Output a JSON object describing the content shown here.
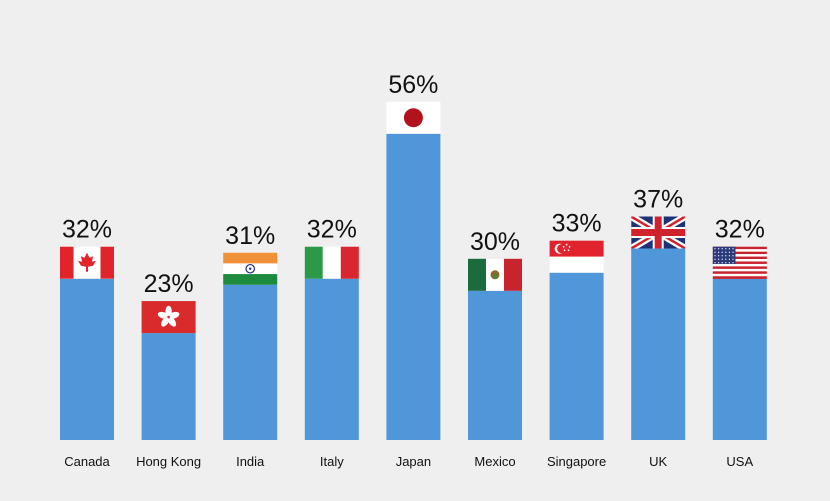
{
  "chart_data": {
    "type": "bar",
    "title": "",
    "xlabel": "",
    "ylabel": "",
    "categories": [
      "Canada",
      "Hong Kong",
      "India",
      "Italy",
      "Japan",
      "Mexico",
      "Singapore",
      "UK",
      "USA"
    ],
    "values": [
      32,
      23,
      31,
      32,
      56,
      30,
      33,
      37,
      32
    ],
    "value_labels": [
      "32%",
      "23%",
      "31%",
      "32%",
      "56%",
      "30%",
      "33%",
      "37%",
      "32%"
    ],
    "ylim": [
      0,
      56
    ],
    "grid": false,
    "legend": "none",
    "bar_color": "#4f97d8",
    "bar_decorations": [
      "canada-flag-icon",
      "hong-kong-flag-icon",
      "india-flag-icon",
      "italy-flag-icon",
      "japan-flag-icon",
      "mexico-flag-icon",
      "singapore-flag-icon",
      "uk-flag-icon",
      "usa-flag-icon"
    ]
  }
}
